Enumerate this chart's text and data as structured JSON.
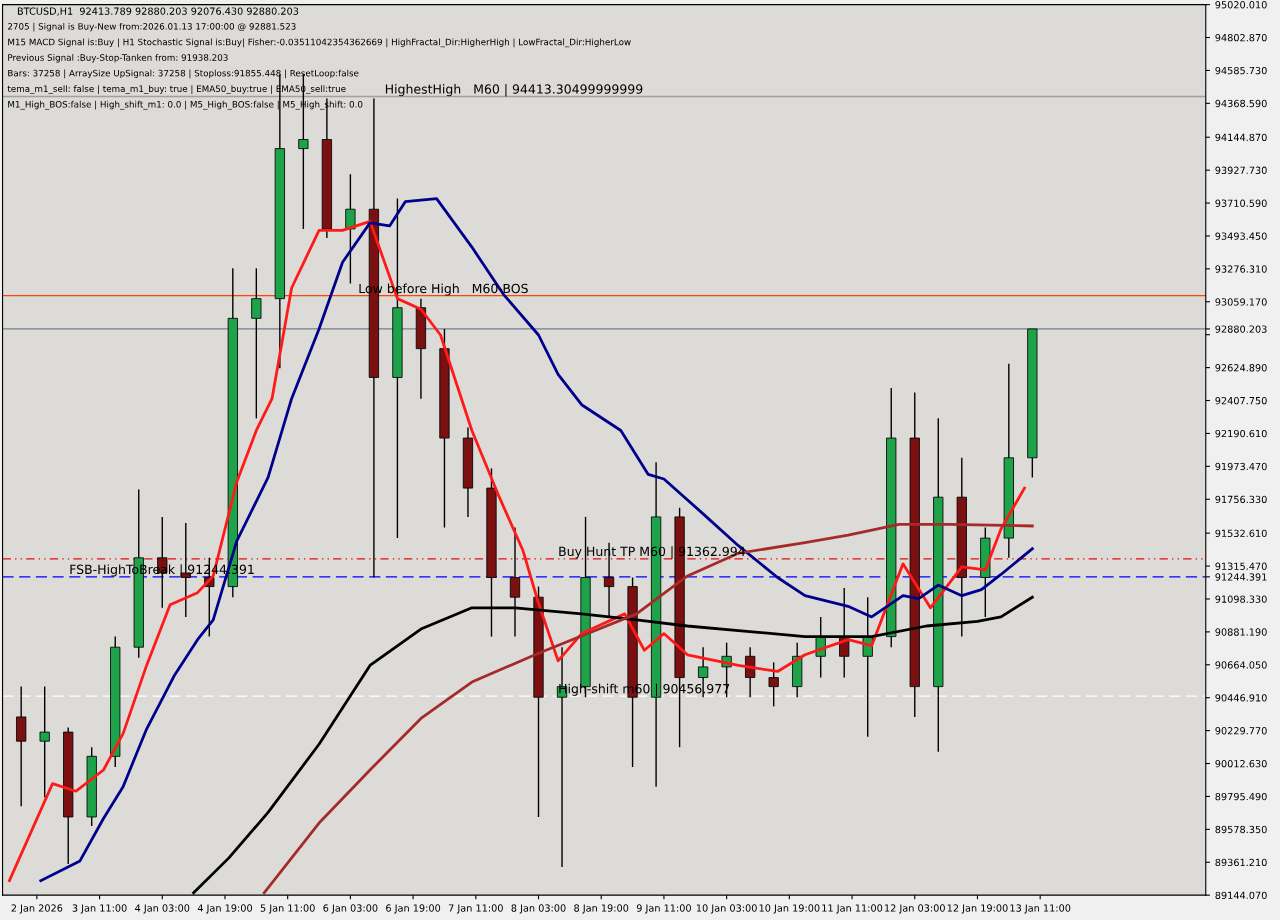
{
  "chart_data": {
    "type": "candlestick",
    "title": "BTCUSD,H1  92413.789 92880.203 92076.430 92880.203",
    "annotations": [
      "2705 | Signal is Buy-New from:2026.01.13 17:00:00 @ 92881.523",
      "M15 MACD Signal is:Buy | H1 Stochastic Signal is:Buy| Fisher:-0.03511042354362669 | HighFractal_Dir:HigherHigh | LowFractal_Dir:HigherLow",
      "Previous Signal :Buy-Stop-Tanken from: 91938.203",
      "Bars: 37258 | ArraySize UpSignal: 37258 | Stoploss:91855.448 | ResetLoop:false",
      "tema_m1_sell: false | tema_m1_buy: true | EMA50_buy:true | EMA50_sell:true",
      "M1_High_BOS:false | High_shift_m1: 0.0 | M5_High_BOS:false | M5_High_shift: 0.0",
      {
        "text": "HighestHigh   M60 | 94413.30499999999",
        "x": "2026-01-06T11:45",
        "y": 94413.305
      },
      {
        "text": "Low before High   M60-BOS",
        "x": "2026-01-06T05:00",
        "y": 93100
      },
      {
        "text": "Buy Hunt TP M60 | 91362.994",
        "x": "2026-01-08T08:00",
        "y": 91362.994
      },
      {
        "text": "FSB-HighToBreak | 91244.391",
        "x": "2026-01-03T03:15",
        "y": 91244.391
      },
      {
        "text": "High-shift m60 | 90456.977",
        "x": "2026-01-08T08:00",
        "y": 90456.977
      }
    ],
    "x": [
      "2026-01-02T15:00",
      "2026-01-02T21:00",
      "2026-01-03T03:00",
      "2026-01-03T09:00",
      "2026-01-03T15:00",
      "2026-01-03T21:00",
      "2026-01-04T03:00",
      "2026-01-04T09:00",
      "2026-01-04T15:00",
      "2026-01-04T21:00",
      "2026-01-05T03:00",
      "2026-01-05T09:00",
      "2026-01-05T15:00",
      "2026-01-05T21:00",
      "2026-01-06T03:00",
      "2026-01-06T09:00",
      "2026-01-06T15:00",
      "2026-01-06T21:00",
      "2026-01-07T03:00",
      "2026-01-07T09:00",
      "2026-01-07T15:00",
      "2026-01-07T21:00",
      "2026-01-08T03:00",
      "2026-01-08T09:00",
      "2026-01-08T15:00",
      "2026-01-08T21:00",
      "2026-01-09T03:00",
      "2026-01-09T09:00",
      "2026-01-09T15:00",
      "2026-01-09T21:00",
      "2026-01-10T03:00",
      "2026-01-10T09:00",
      "2026-01-10T15:00",
      "2026-01-10T21:00",
      "2026-01-11T03:00",
      "2026-01-11T09:00",
      "2026-01-11T15:00",
      "2026-01-11T21:00",
      "2026-01-12T03:00",
      "2026-01-12T09:00",
      "2026-01-12T15:00",
      "2026-01-12T21:00",
      "2026-01-13T03:00",
      "2026-01-13T09:00"
    ],
    "ohlc": [
      [
        90320,
        90520,
        89730,
        90160
      ],
      [
        90160,
        90520,
        89790,
        90220
      ],
      [
        90220,
        90250,
        89350,
        89660
      ],
      [
        89660,
        90120,
        89600,
        90060
      ],
      [
        90060,
        90850,
        89990,
        90780
      ],
      [
        90780,
        91820,
        90710,
        91370
      ],
      [
        91370,
        91640,
        91040,
        91270
      ],
      [
        91270,
        91600,
        90980,
        91240
      ],
      [
        91240,
        91370,
        90850,
        91180
      ],
      [
        91180,
        93280,
        91110,
        92950
      ],
      [
        92950,
        93280,
        92290,
        93080
      ],
      [
        93080,
        94560,
        92620,
        94070
      ],
      [
        94070,
        94560,
        93540,
        94130
      ],
      [
        94130,
        94400,
        93480,
        93540
      ],
      [
        93540,
        93900,
        93180,
        93670
      ],
      [
        93670,
        94400,
        91240,
        92560
      ],
      [
        92560,
        93740,
        91500,
        93020
      ],
      [
        93020,
        93080,
        92420,
        92750
      ],
      [
        92750,
        92880,
        91570,
        92160
      ],
      [
        92160,
        92230,
        91640,
        91830
      ],
      [
        91830,
        91960,
        90850,
        91240
      ],
      [
        91240,
        91570,
        90850,
        91110
      ],
      [
        91110,
        91180,
        89660,
        90450
      ],
      [
        90450,
        90780,
        89330,
        90520
      ],
      [
        90520,
        91640,
        90450,
        91240
      ],
      [
        91240,
        91470,
        90980,
        91180
      ],
      [
        91180,
        91240,
        89990,
        90450
      ],
      [
        90450,
        92000,
        89860,
        91640
      ],
      [
        91640,
        91700,
        90120,
        90580
      ],
      [
        90580,
        90780,
        90450,
        90650
      ],
      [
        90650,
        90810,
        90450,
        90720
      ],
      [
        90720,
        90780,
        90450,
        90580
      ],
      [
        90580,
        90680,
        90390,
        90520
      ],
      [
        90520,
        90810,
        90450,
        90720
      ],
      [
        90720,
        90980,
        90580,
        90850
      ],
      [
        90850,
        91170,
        90580,
        90720
      ],
      [
        90720,
        91110,
        90190,
        90850
      ],
      [
        90850,
        92490,
        90780,
        92160
      ],
      [
        92160,
        92460,
        90320,
        90520
      ],
      [
        90520,
        92290,
        90090,
        91770
      ],
      [
        91770,
        92030,
        90850,
        91240
      ],
      [
        91240,
        91570,
        90980,
        91500
      ],
      [
        91500,
        92650,
        91370,
        92030
      ],
      [
        92030,
        92880,
        91900,
        92880
      ]
    ],
    "colors": [
      "#7a1010",
      "#1fa34a",
      "#7a1010",
      "#1fa34a",
      "#1fa34a",
      "#1fa34a",
      "#7a1010",
      "#7a1010",
      "#7a1010",
      "#1fa34a",
      "#1fa34a",
      "#1fa34a",
      "#1fa34a",
      "#7a1010",
      "#1fa34a",
      "#7a1010",
      "#1fa34a",
      "#7a1010",
      "#7a1010",
      "#7a1010",
      "#7a1010",
      "#7a1010",
      "#7a1010",
      "#1fa34a",
      "#1fa34a",
      "#7a1010",
      "#7a1010",
      "#1fa34a",
      "#7a1010",
      "#1fa34a",
      "#1fa34a",
      "#7a1010",
      "#7a1010",
      "#1fa34a",
      "#1fa34a",
      "#7a1010",
      "#1fa34a",
      "#1fa34a",
      "#7a1010",
      "#1fa34a",
      "#7a1010",
      "#1fa34a",
      "#1fa34a",
      "#1fa34a"
    ],
    "series": [
      {
        "type": "line",
        "color": "#ff1a1a",
        "x": [
          "2026-01-02T12:00",
          "2026-01-02T23:00",
          "2026-01-03T05:00",
          "2026-01-03T12:00",
          "2026-01-03T17:00",
          "2026-01-03T23:00",
          "2026-01-04T05:00",
          "2026-01-04T12:00",
          "2026-01-04T16:00",
          "2026-01-04T22:00",
          "2026-01-05T03:00",
          "2026-01-05T07:00",
          "2026-01-05T12:00",
          "2026-01-05T19:00",
          "2026-01-06T01:00",
          "2026-01-06T08:00",
          "2026-01-06T15:00",
          "2026-01-06T21:00",
          "2026-01-07T02:00",
          "2026-01-07T10:00",
          "2026-01-07T17:00",
          "2026-01-07T23:00",
          "2026-01-08T03:00",
          "2026-01-08T08:00",
          "2026-01-08T14:00",
          "2026-01-09T01:00",
          "2026-01-09T06:00",
          "2026-01-09T11:00",
          "2026-01-09T17:00",
          "2026-01-10T06:00",
          "2026-01-10T16:00",
          "2026-01-10T23:00",
          "2026-01-11T10:00",
          "2026-01-11T16:00",
          "2026-01-12T00:00",
          "2026-01-12T07:00",
          "2026-01-12T15:00",
          "2026-01-12T21:00",
          "2026-01-13T01:00",
          "2026-01-13T07:00"
        ],
        "values": [
          89240,
          89880,
          89830,
          89970,
          90210,
          90660,
          91060,
          91140,
          91250,
          91870,
          92210,
          92420,
          93150,
          93530,
          93530,
          93590,
          93080,
          93010,
          92840,
          92210,
          91770,
          91420,
          91070,
          90690,
          90870,
          91000,
          90760,
          90870,
          90730,
          90660,
          90620,
          90730,
          90830,
          90790,
          91330,
          91040,
          91310,
          91290,
          91560,
          91830
        ]
      },
      {
        "type": "line",
        "color": "#00008b",
        "x": [
          "2026-01-02T20:00",
          "2026-01-03T06:00",
          "2026-01-03T12:00",
          "2026-01-03T17:00",
          "2026-01-03T23:00",
          "2026-01-04T06:00",
          "2026-01-04T12:00",
          "2026-01-04T16:00",
          "2026-01-04T22:00",
          "2026-01-05T06:00",
          "2026-01-05T12:00",
          "2026-01-05T19:00",
          "2026-01-06T01:00",
          "2026-01-06T08:00",
          "2026-01-06T13:00",
          "2026-01-06T17:00",
          "2026-01-07T01:00",
          "2026-01-07T10:00",
          "2026-01-07T18:00",
          "2026-01-08T03:00",
          "2026-01-08T08:00",
          "2026-01-08T14:00",
          "2026-01-09T00:00",
          "2026-01-09T07:00",
          "2026-01-09T11:00",
          "2026-01-09T21:00",
          "2026-01-10T06:00",
          "2026-01-10T16:00",
          "2026-01-10T23:00",
          "2026-01-11T10:00",
          "2026-01-11T16:00",
          "2026-01-12T00:00",
          "2026-01-12T04:00",
          "2026-01-12T09:00",
          "2026-01-12T15:00",
          "2026-01-12T20:00",
          "2026-01-13T01:00",
          "2026-01-13T09:00"
        ],
        "values": [
          89240,
          89370,
          89650,
          89860,
          90240,
          90590,
          90830,
          90960,
          91480,
          91900,
          92420,
          92880,
          93320,
          93580,
          93560,
          93720,
          93740,
          93420,
          93110,
          92840,
          92580,
          92380,
          92210,
          91920,
          91890,
          91660,
          91450,
          91240,
          91120,
          91050,
          90980,
          91120,
          91100,
          91190,
          91120,
          91160,
          91260,
          91430
        ]
      },
      {
        "type": "line",
        "color": "#000000",
        "x": [
          "2026-01-04T11:00",
          "2026-01-04T20:00",
          "2026-01-05T06:00",
          "2026-01-05T19:00",
          "2026-01-06T08:00",
          "2026-01-06T21:00",
          "2026-01-07T10:00",
          "2026-01-07T21:00",
          "2026-01-08T14:00",
          "2026-01-09T04:00",
          "2026-01-09T17:00",
          "2026-01-10T06:00",
          "2026-01-10T23:00",
          "2026-01-11T16:00",
          "2026-01-12T06:00",
          "2026-01-12T19:00",
          "2026-01-13T01:00",
          "2026-01-13T09:00"
        ],
        "values": [
          89160,
          89390,
          89690,
          90140,
          90660,
          90900,
          91040,
          91040,
          91000,
          90960,
          90920,
          90890,
          90850,
          90850,
          90920,
          90950,
          90980,
          91110
        ]
      },
      {
        "type": "line",
        "color": "#a52a2a",
        "x": [
          "2026-01-05T05:00",
          "2026-01-05T19:00",
          "2026-01-06T08:00",
          "2026-01-06T21:00",
          "2026-01-07T10:00",
          "2026-01-08T03:00",
          "2026-01-09T04:00",
          "2026-01-09T17:00",
          "2026-01-10T06:00",
          "2026-01-10T23:00",
          "2026-01-11T10:00",
          "2026-01-11T23:00",
          "2026-01-12T12:00",
          "2026-01-13T09:00"
        ],
        "values": [
          89160,
          89620,
          89970,
          90310,
          90550,
          90740,
          91000,
          91250,
          91400,
          91470,
          91520,
          91590,
          91590,
          91580
        ]
      }
    ],
    "ref_lines": [
      {
        "axis": "y",
        "value": 94413.305,
        "color": "#a0a0a0",
        "line_style": "solid"
      },
      {
        "axis": "y",
        "value": 93100,
        "color": "#ff4500",
        "line_style": "solid"
      },
      {
        "axis": "y",
        "value": 92880.203,
        "color": "#708090",
        "line_style": "solid"
      },
      {
        "axis": "y",
        "value": 91362.994,
        "color": "#e01010",
        "line_style": "dashdot"
      },
      {
        "axis": "y",
        "value": 91244.391,
        "color": "#0000ff",
        "line_style": "dashed"
      },
      {
        "axis": "y",
        "value": 90456.977,
        "color": "#ffffff",
        "line_style": "dashed"
      }
    ],
    "xlim": [
      "2026-01-02T10:15",
      "2026-01-15T05:15"
    ],
    "xticks": [
      {
        "value": "2026-01-02T19:00",
        "label": "2 Jan 2026"
      },
      {
        "value": "2026-01-03T11:00",
        "label": "3 Jan 11:00"
      },
      {
        "value": "2026-01-04T03:00",
        "label": "4 Jan 03:00"
      },
      {
        "value": "2026-01-04T19:00",
        "label": "4 Jan 19:00"
      },
      {
        "value": "2026-01-05T11:00",
        "label": "5 Jan 11:00"
      },
      {
        "value": "2026-01-06T03:00",
        "label": "6 Jan 03:00"
      },
      {
        "value": "2026-01-06T19:00",
        "label": "6 Jan 19:00"
      },
      {
        "value": "2026-01-07T11:00",
        "label": "7 Jan 11:00"
      },
      {
        "value": "2026-01-08T03:00",
        "label": "8 Jan 03:00"
      },
      {
        "value": "2026-01-08T19:00",
        "label": "8 Jan 19:00"
      },
      {
        "value": "2026-01-09T11:00",
        "label": "9 Jan 11:00"
      },
      {
        "value": "2026-01-10T03:00",
        "label": "10 Jan 03:00"
      },
      {
        "value": "2026-01-10T19:00",
        "label": "10 Jan 19:00"
      },
      {
        "value": "2026-01-11T11:00",
        "label": "11 Jan 11:00"
      },
      {
        "value": "2026-01-12T03:00",
        "label": "12 Jan 03:00"
      },
      {
        "value": "2026-01-12T19:00",
        "label": "12 Jan 19:00"
      },
      {
        "value": "2026-01-13T11:00",
        "label": "13 Jan 11:00"
      }
    ],
    "ylim": [
      89144.07,
      95020.01
    ],
    "yticks": [
      {
        "value": 89144.07,
        "label": "89144.070"
      },
      {
        "value": 89361.21,
        "label": "89361.210"
      },
      {
        "value": 89578.35,
        "label": "89578.350"
      },
      {
        "value": 89795.49,
        "label": "89795.490"
      },
      {
        "value": 90012.63,
        "label": "90012.630"
      },
      {
        "value": 90229.77,
        "label": "90229.770"
      },
      {
        "value": 90446.91,
        "label": "90446.910"
      },
      {
        "value": 90664.05,
        "label": "90664.050"
      },
      {
        "value": 90881.19,
        "label": "90881.190"
      },
      {
        "value": 91098.33,
        "label": "91098.330"
      },
      {
        "value": 91244.391,
        "label": "91244.391"
      },
      {
        "value": 91315.47,
        "label": "91315.470"
      },
      {
        "value": 91532.61,
        "label": "91532.610"
      },
      {
        "value": 91756.33,
        "label": "91756.330"
      },
      {
        "value": 91973.47,
        "label": "91973.470"
      },
      {
        "value": 92190.61,
        "label": "92190.610"
      },
      {
        "value": 92407.75,
        "label": "92407.750"
      },
      {
        "value": 92624.89,
        "label": "92624.890"
      },
      {
        "value": 92842.03,
        "label": null
      },
      {
        "value": 92880.203,
        "label": "92880.203"
      },
      {
        "value": 93059.17,
        "label": "93059.170"
      },
      {
        "value": 93276.31,
        "label": "93276.310"
      },
      {
        "value": 93493.45,
        "label": "93493.450"
      },
      {
        "value": 93710.59,
        "label": "93710.590"
      },
      {
        "value": 93927.73,
        "label": "93927.730"
      },
      {
        "value": 94144.87,
        "label": "94144.870"
      },
      {
        "value": 94368.59,
        "label": "94368.590"
      },
      {
        "value": 94585.73,
        "label": "94585.730"
      },
      {
        "value": 94802.87,
        "label": "94802.870"
      },
      {
        "value": 95020.01,
        "label": "95020.010"
      }
    ],
    "grid": false,
    "legend": false
  }
}
